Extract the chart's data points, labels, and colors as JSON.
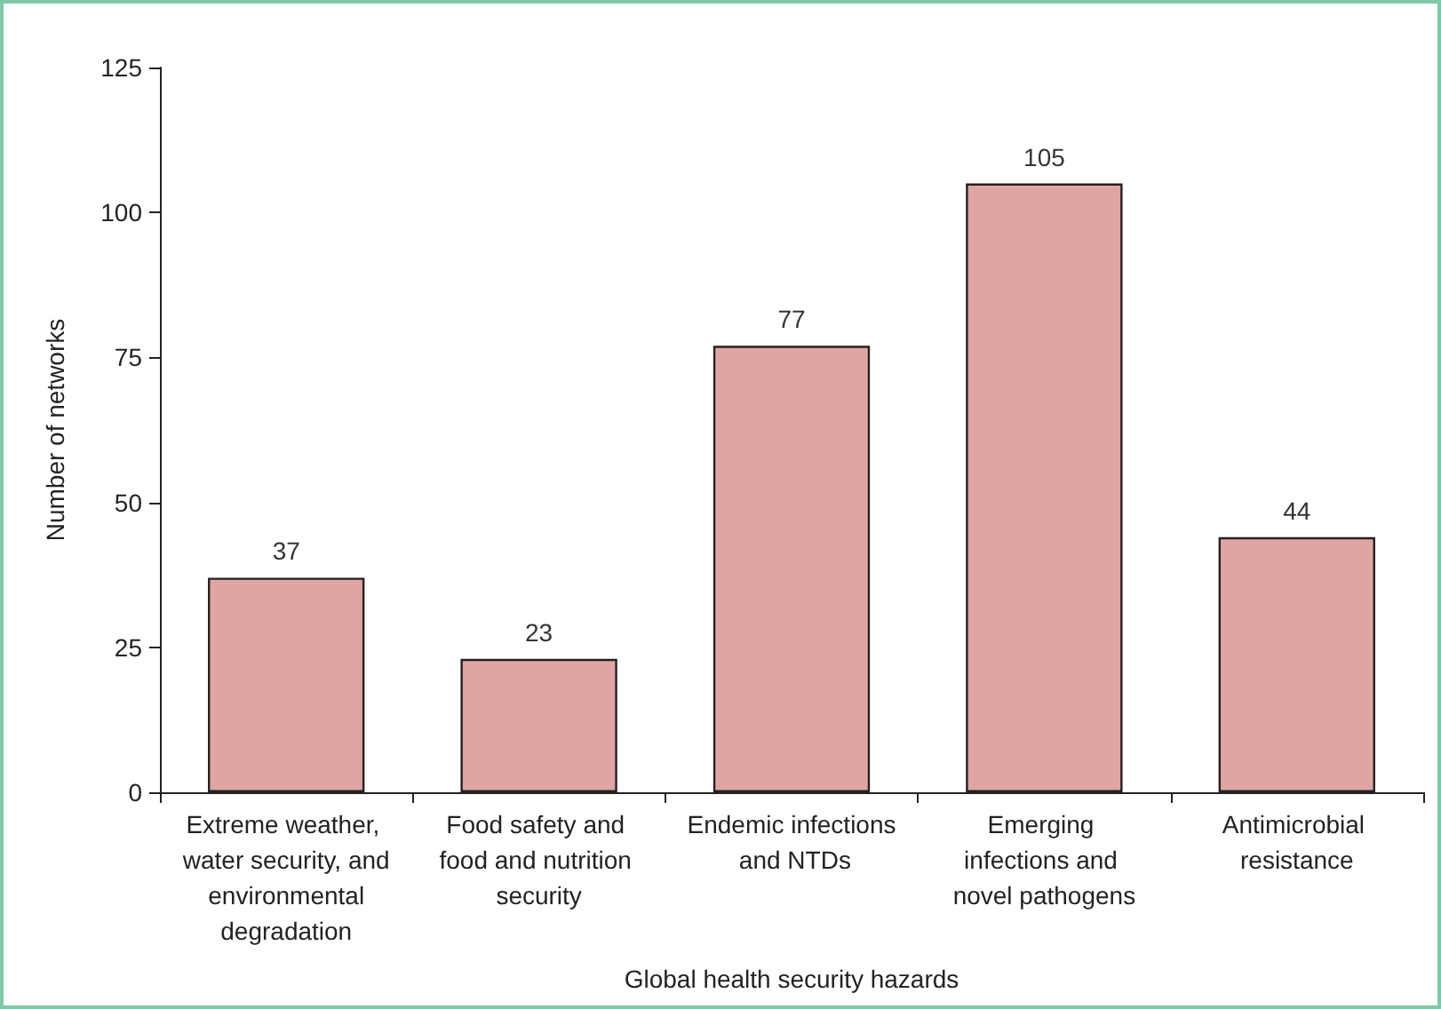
{
  "chart_data": {
    "type": "bar",
    "xlabel": "Global health security hazards",
    "ylabel": "Number of networks",
    "categories": [
      "Extreme weather, water security, and environmental degradation",
      "Food safety and food and nutrition security",
      "Endemic infections and NTDs",
      "Emerging infections and novel pathogens",
      "Antimicrobial resistance"
    ],
    "values": [
      37,
      23,
      77,
      105,
      44
    ],
    "color": "#e0a5a2",
    "ylim": [
      0,
      125
    ],
    "yticks": [
      0,
      25,
      50,
      75,
      100,
      125
    ],
    "grid": false,
    "data_labels": true
  }
}
